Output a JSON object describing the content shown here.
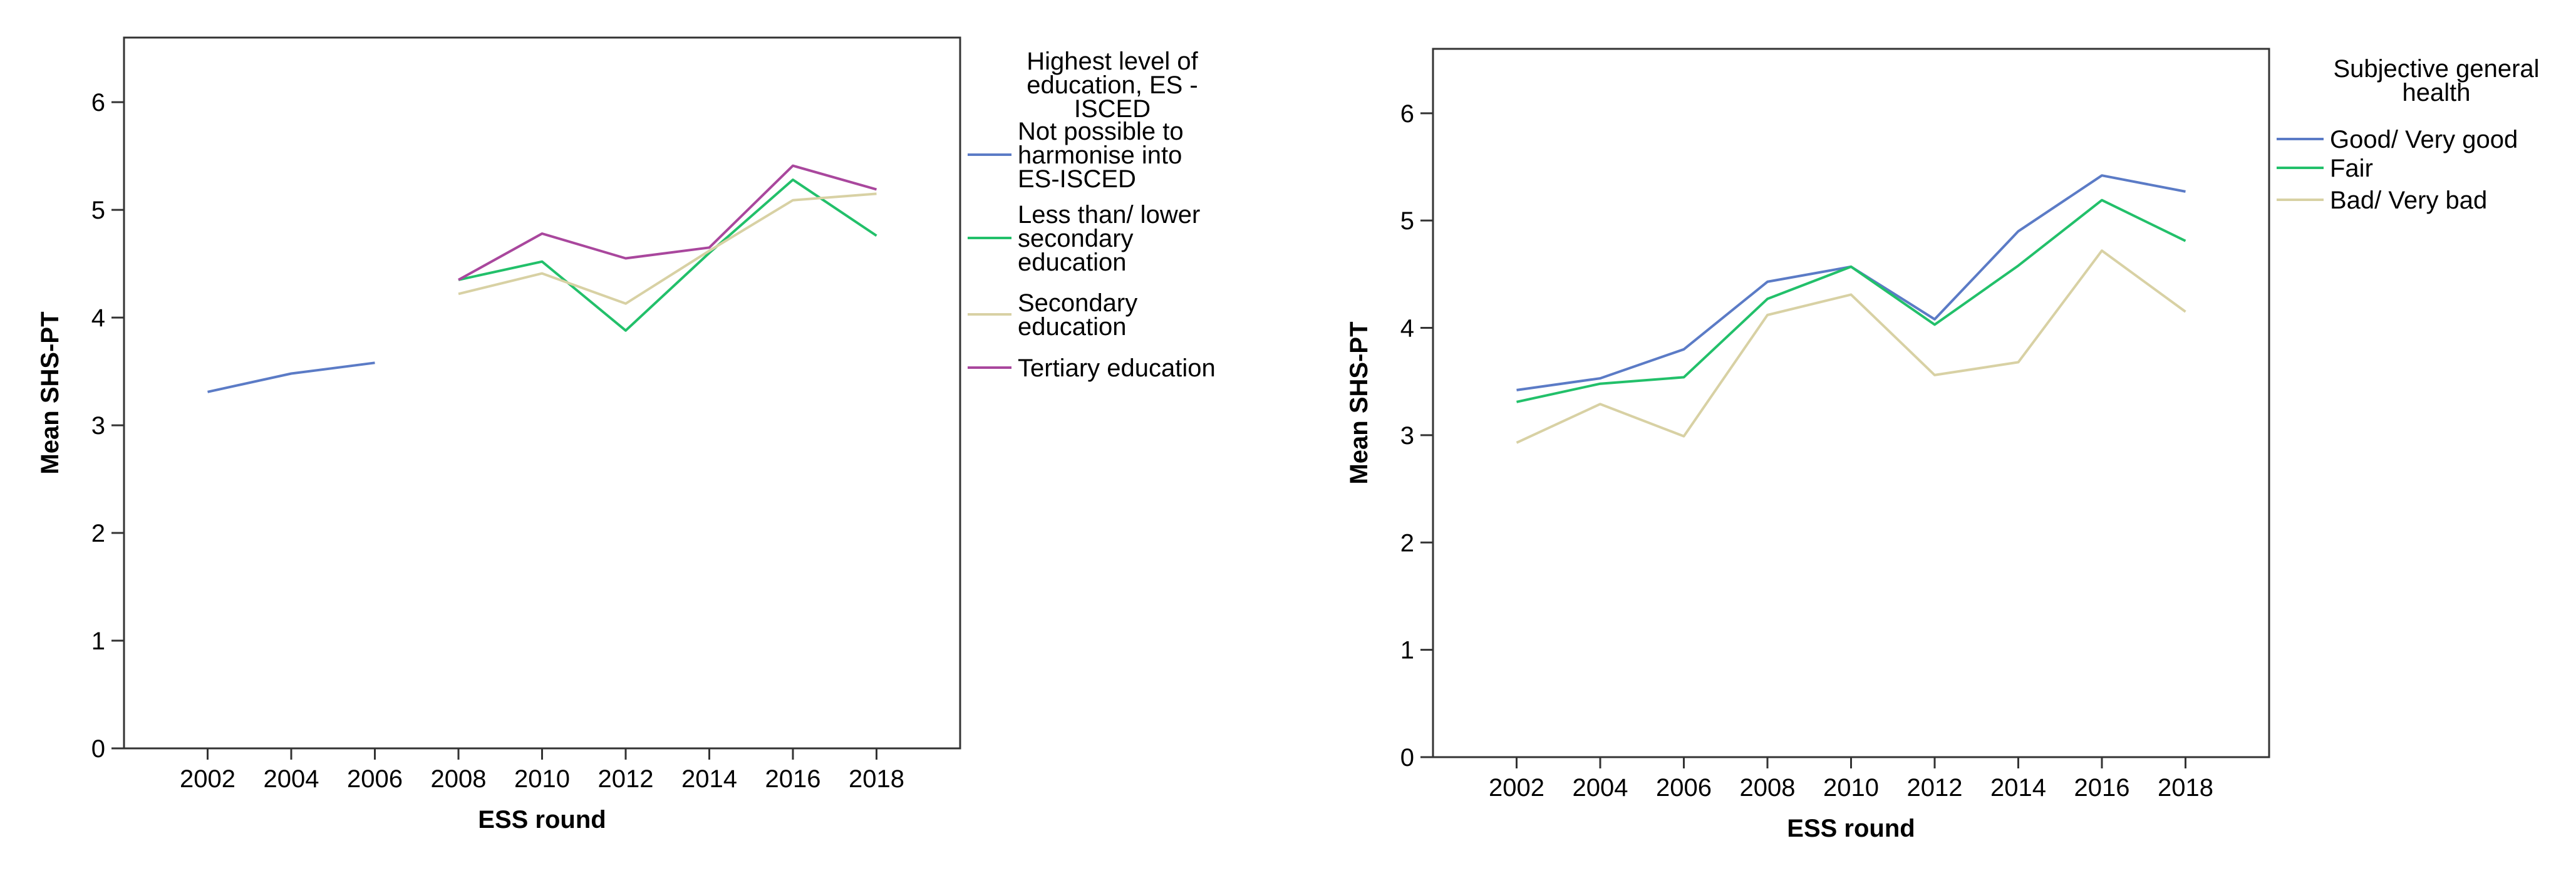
{
  "chart_data": [
    {
      "type": "line",
      "title": "",
      "xlabel": "ESS round",
      "ylabel": "Mean SHS-PT",
      "ylim": [
        0,
        6.6
      ],
      "yticks": [
        "0",
        "1",
        "2",
        "3",
        "4",
        "5",
        "6"
      ],
      "categories": [
        "2002",
        "2004",
        "2006",
        "2008",
        "2010",
        "2012",
        "2014",
        "2016",
        "2018"
      ],
      "grid": false,
      "legend": {
        "title": "Highest level of education, ES - ISCED",
        "title_lines": [
          "Highest level of",
          "education, ES -",
          "ISCED"
        ],
        "position": "right"
      },
      "series": [
        {
          "name": "Not possible to harmonise into ES-ISCED",
          "label_lines": [
            "Not possible to",
            "harmonise into",
            "ES-ISCED"
          ],
          "color": "#5b7bc6",
          "values": [
            3.31,
            3.48,
            3.58,
            null,
            null,
            null,
            null,
            null,
            null
          ]
        },
        {
          "name": "Less than/ lower secondary education",
          "label_lines": [
            "Less than/ lower",
            "secondary",
            "education"
          ],
          "color": "#22c06a",
          "values": [
            null,
            null,
            null,
            4.35,
            4.52,
            3.88,
            4.6,
            5.28,
            4.76
          ]
        },
        {
          "name": "Secondary education",
          "label_lines": [
            "Secondary",
            "education"
          ],
          "color": "#d8d1a4",
          "values": [
            null,
            null,
            null,
            4.22,
            4.41,
            4.13,
            4.62,
            5.09,
            5.15
          ]
        },
        {
          "name": "Tertiary education",
          "label_lines": [
            "Tertiary education"
          ],
          "color": "#a9479d",
          "values": [
            null,
            null,
            null,
            4.35,
            4.78,
            4.55,
            4.65,
            5.41,
            5.19
          ]
        }
      ]
    },
    {
      "type": "line",
      "title": "",
      "xlabel": "ESS round",
      "ylabel": "Mean SHS-PT",
      "ylim": [
        0,
        6.6
      ],
      "yticks": [
        "0",
        "1",
        "2",
        "3",
        "4",
        "5",
        "6"
      ],
      "categories": [
        "2002",
        "2004",
        "2006",
        "2008",
        "2010",
        "2012",
        "2014",
        "2016",
        "2018"
      ],
      "grid": false,
      "legend": {
        "title": "Subjective general health",
        "title_lines": [
          "Subjective general",
          "health"
        ],
        "position": "right"
      },
      "series": [
        {
          "name": "Good/ Very good",
          "label_lines": [
            "Good/ Very good"
          ],
          "color": "#5b7bc6",
          "values": [
            3.42,
            3.53,
            3.8,
            4.43,
            4.57,
            4.08,
            4.9,
            5.42,
            5.27
          ]
        },
        {
          "name": "Fair",
          "label_lines": [
            "Fair"
          ],
          "color": "#22c06a",
          "values": [
            3.31,
            3.48,
            3.54,
            4.27,
            4.57,
            4.03,
            4.58,
            5.19,
            4.81
          ]
        },
        {
          "name": "Bad/ Very bad",
          "label_lines": [
            "Bad/ Very bad"
          ],
          "color": "#d8d1a4",
          "values": [
            2.93,
            3.29,
            2.99,
            4.12,
            4.31,
            3.56,
            3.68,
            4.72,
            4.15
          ]
        }
      ]
    }
  ]
}
